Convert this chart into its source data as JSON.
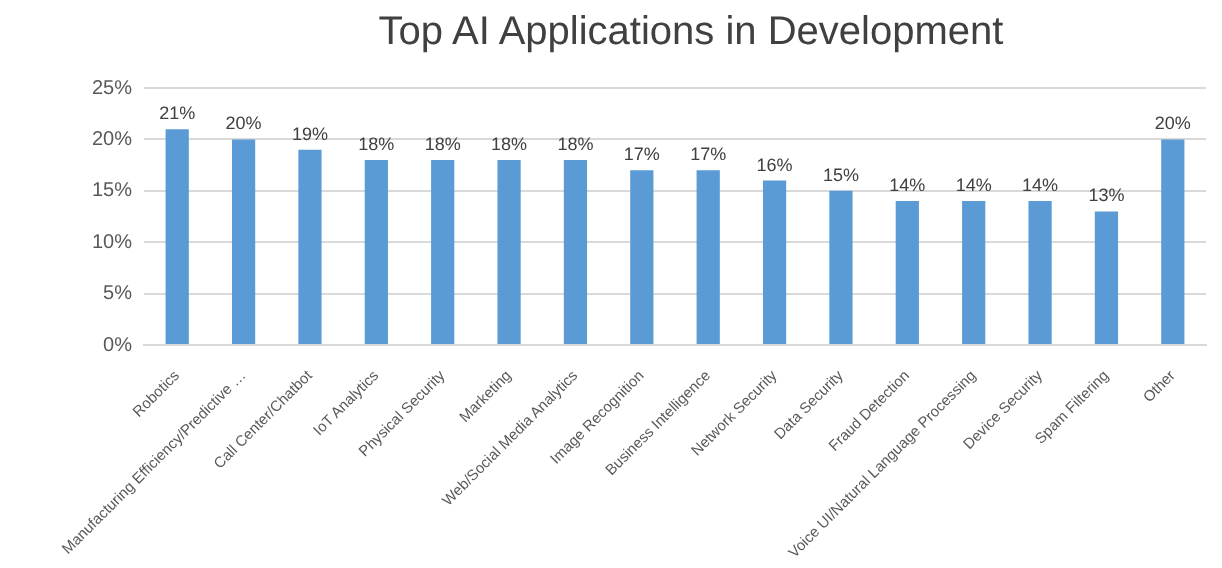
{
  "chart_data": {
    "type": "bar",
    "title": "Top AI Applications in Development",
    "categories": [
      "Robotics",
      "Manufacturing Efficiency/Predictive …",
      "Call Center/Chatbot",
      "IoT Analytics",
      "Physical Security",
      "Marketing",
      "Web/Social Media Analytics",
      "Image Recognition",
      "Business Intelligence",
      "Network Security",
      "Data Security",
      "Fraud Detection",
      "Voice UI/Natural Language Processing",
      "Device Security",
      "Spam Filtering",
      "Other"
    ],
    "values": [
      21,
      20,
      19,
      18,
      18,
      18,
      18,
      17,
      17,
      16,
      15,
      14,
      14,
      14,
      13,
      20
    ],
    "value_labels": [
      "21%",
      "20%",
      "19%",
      "18%",
      "18%",
      "18%",
      "18%",
      "17%",
      "17%",
      "16%",
      "15%",
      "14%",
      "14%",
      "14%",
      "13%",
      "20%"
    ],
    "color": "#5b9bd5",
    "ylim": [
      0,
      25
    ],
    "yticks": [
      {
        "value": 0,
        "label": "0%"
      },
      {
        "value": 5,
        "label": "5%"
      },
      {
        "value": 10,
        "label": "10%"
      },
      {
        "value": 15,
        "label": "15%"
      },
      {
        "value": 20,
        "label": "20%"
      },
      {
        "value": 25,
        "label": "25%"
      }
    ],
    "grid": "y",
    "legend": false
  }
}
